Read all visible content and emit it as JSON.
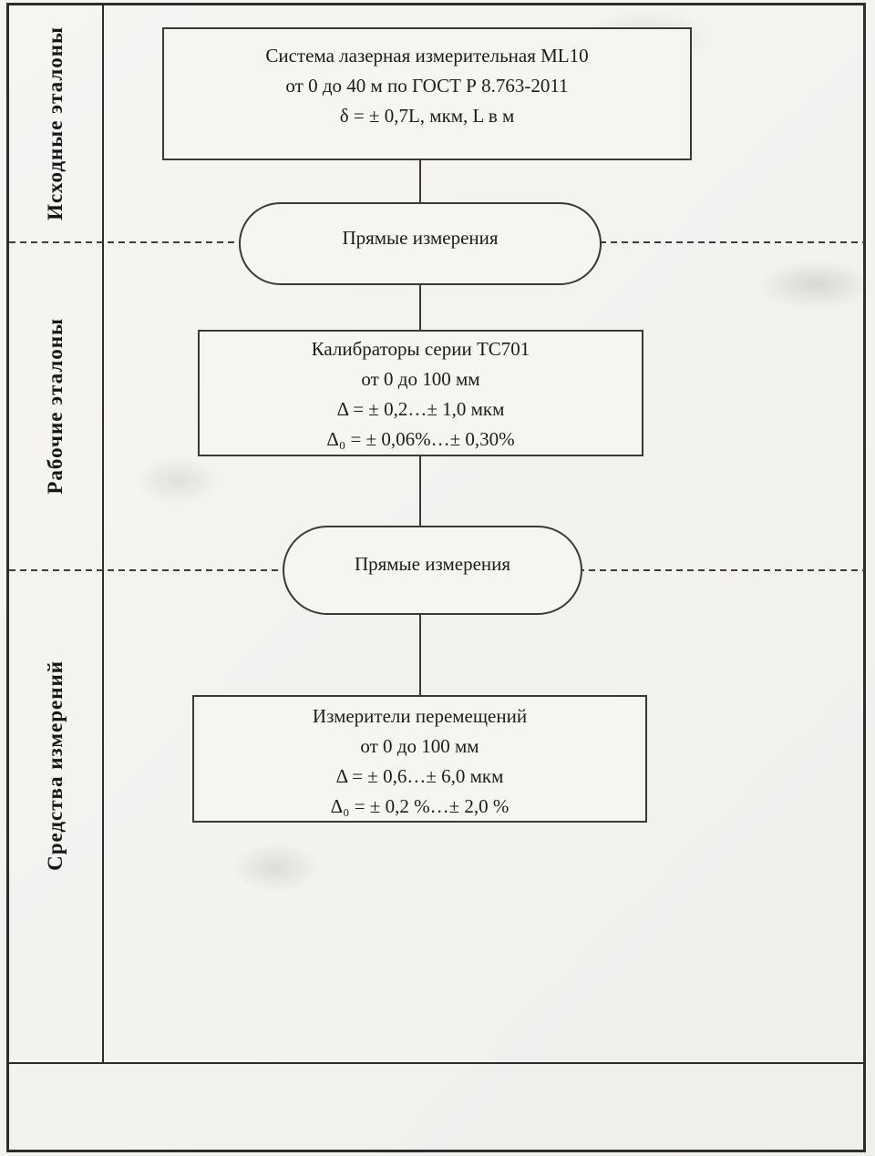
{
  "diagram": {
    "type": "calibration-hierarchy-scheme",
    "sidebar": {
      "sections": [
        {
          "label": "Исходные эталоны"
        },
        {
          "label": "Рабочие эталоны"
        },
        {
          "label": "Средства измерений"
        }
      ]
    },
    "nodes": {
      "reference_standard": {
        "lines": [
          "Система лазерная измерительная ML10",
          "от 0 до 40 м по ГОСТ Р 8.763-2011",
          "δ = ± 0,7L, мкм, L в м"
        ]
      },
      "transfer_method_1": {
        "label": "Прямые измерения"
      },
      "working_standard": {
        "lines": [
          "Калибраторы серии TC701",
          "от 0 до 100 мм",
          "Δ = ± 0,2…± 1,0 мкм",
          "Δ₀ = ± 0,06%…± 0,30%"
        ]
      },
      "transfer_method_2": {
        "label": "Прямые измерения"
      },
      "measuring_instruments": {
        "lines": [
          "Измерители перемещений",
          "от 0 до 100 мм",
          "Δ = ± 0,6…± 6,0 мкм",
          "Δ₀ = ± 0,2 %…± 2,0 %"
        ]
      }
    },
    "colors": {
      "paper": "#f6f5f2",
      "line": "#2e2d2b",
      "text": "#1c1c1c"
    }
  }
}
